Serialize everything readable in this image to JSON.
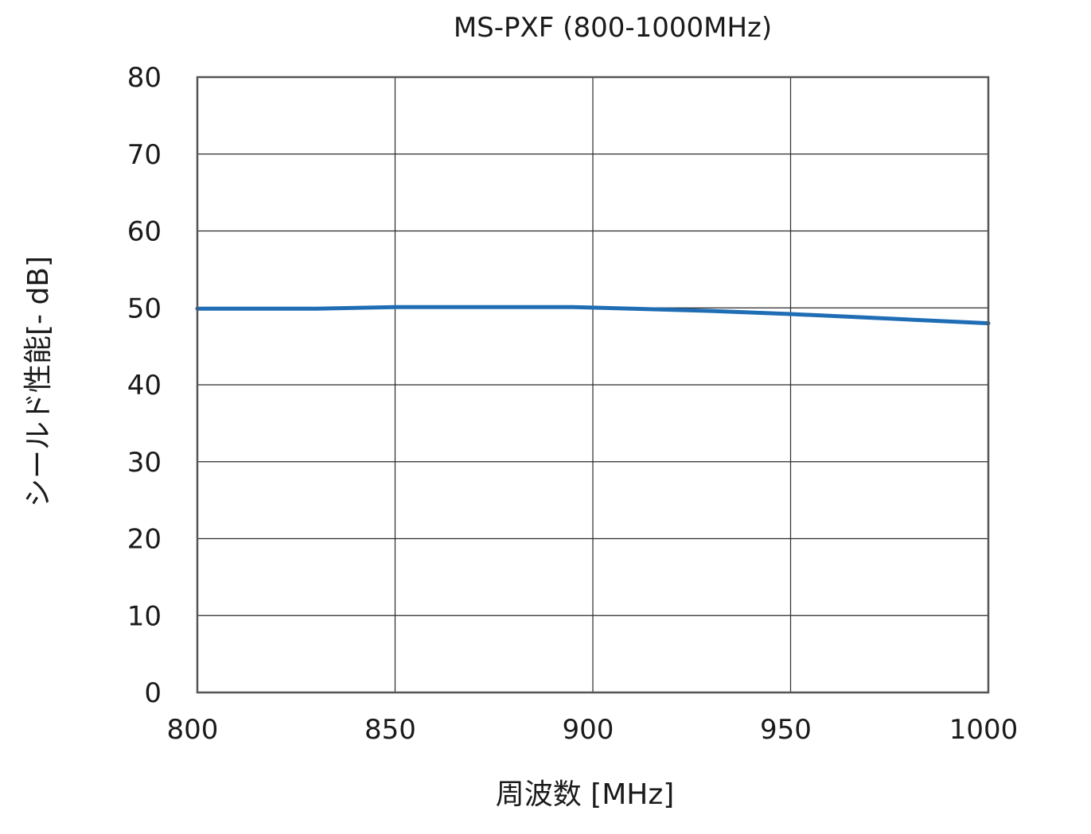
{
  "chart_data": {
    "type": "line",
    "title": "MS-PXF (800-1000MHz)",
    "xlabel": "周波数 [MHz]",
    "ylabel": "シールド性能[- dB]",
    "xlim": [
      800,
      1000
    ],
    "ylim": [
      0,
      80
    ],
    "x_ticks": [
      "800",
      "850",
      "900",
      "950",
      "1000"
    ],
    "y_ticks": [
      "0",
      "10",
      "20",
      "30",
      "40",
      "50",
      "60",
      "70",
      "80"
    ],
    "grid": true,
    "legend": "none",
    "series": [
      {
        "color": "#1f6db5",
        "x": [
          800,
          830,
          850,
          875,
          895,
          910,
          930,
          950,
          975,
          1000
        ],
        "y": [
          49.9,
          49.9,
          50.1,
          50.1,
          50.1,
          49.9,
          49.6,
          49.2,
          48.6,
          48.0
        ]
      }
    ]
  }
}
